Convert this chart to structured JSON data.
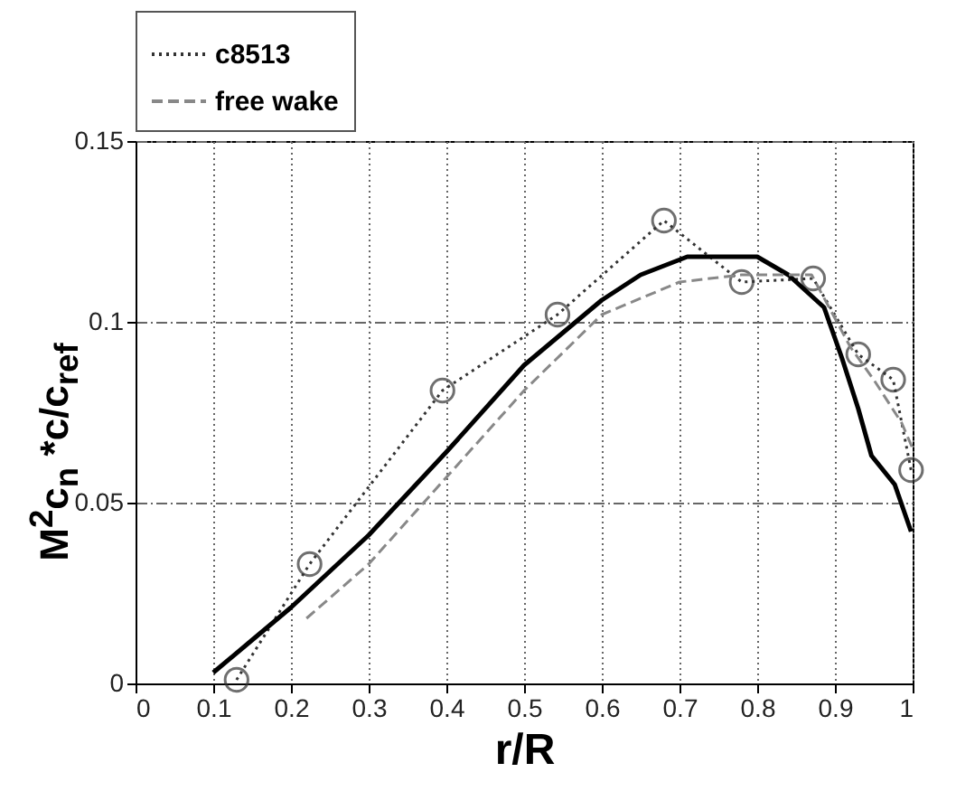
{
  "chart_data": {
    "type": "line",
    "xlabel": "r/R",
    "ylabel": "M$^{2}$c$_{n}$ *c/c$_{ref}$",
    "xlim": [
      0,
      1
    ],
    "xticks": [
      0,
      0.1,
      0.2,
      0.3,
      0.4,
      0.5,
      0.6,
      0.7,
      0.8,
      0.9,
      1
    ],
    "ylim": [
      0,
      0.15
    ],
    "yticks": [
      0,
      0.05,
      0.1,
      0.15
    ],
    "grid": true,
    "legend": "top",
    "series": [
      {
        "name": "c8513",
        "color": "#333333",
        "line_style": "dotted",
        "marker": "circle",
        "x": [
          0.13,
          0.224,
          0.395,
          0.543,
          0.68,
          0.78,
          0.872,
          0.93,
          0.975,
          0.998
        ],
        "values": [
          0.001,
          0.033,
          0.081,
          0.102,
          0.128,
          0.111,
          0.112,
          0.091,
          0.084,
          0.059
        ]
      },
      {
        "color": "#000000",
        "line_style": "solid",
        "x": [
          0.1,
          0.15,
          0.2,
          0.3,
          0.4,
          0.5,
          0.6,
          0.65,
          0.71,
          0.8,
          0.84,
          0.886,
          0.909,
          0.93,
          0.947,
          0.977,
          0.998
        ],
        "values": [
          0.003,
          0.012,
          0.021,
          0.041,
          0.064,
          0.088,
          0.106,
          0.113,
          0.118,
          0.118,
          0.113,
          0.104,
          0.09,
          0.076,
          0.063,
          0.055,
          0.042
        ]
      },
      {
        "name": "free wake",
        "color": "#888888",
        "line_style": "dashed",
        "x": [
          0.22,
          0.3,
          0.4,
          0.5,
          0.6,
          0.7,
          0.78,
          0.87,
          0.92,
          0.95,
          0.986,
          1.0
        ],
        "values": [
          0.018,
          0.033,
          0.057,
          0.081,
          0.102,
          0.111,
          0.113,
          0.113,
          0.093,
          0.084,
          0.072,
          0.065
        ]
      }
    ]
  }
}
